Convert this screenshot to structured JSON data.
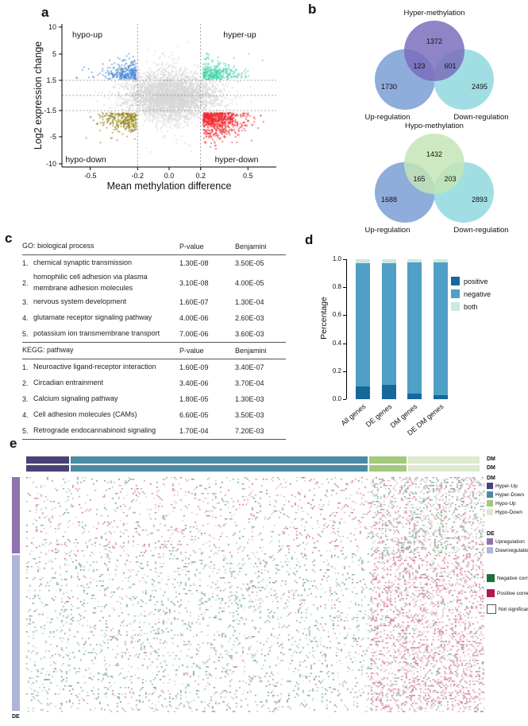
{
  "figure": {
    "labels": {
      "a": "a",
      "b": "b",
      "c": "c",
      "d": "d",
      "e": "e"
    }
  },
  "chart_data": [
    {
      "id": "a",
      "type": "scatter",
      "xlabel": "Mean methylation difference",
      "ylabel": "Log2 expression change",
      "x_ticks": [
        "-0.5",
        "-0.2",
        "0.0",
        "0.2",
        "0.5"
      ],
      "y_ticks": [
        "10",
        "5",
        "1.5",
        "-1.5",
        "-5",
        "-10"
      ],
      "x_thresholds": [
        -0.2,
        0.2
      ],
      "y_thresholds": [
        1.5,
        -1.5
      ],
      "xlim": [
        -0.68,
        0.68
      ],
      "quadrants": {
        "top_left": "hypo-up",
        "top_right": "hyper-up",
        "bottom_left": "hypo-down",
        "bottom_right": "hyper-down"
      },
      "clusters": [
        {
          "name": "not-significant",
          "color": "#d6d6d6",
          "count": 3000
        },
        {
          "name": "center-band",
          "color": "#d6d6d6",
          "count": 500
        },
        {
          "name": "hypo-up",
          "color": "#3d7fd4",
          "count": 260
        },
        {
          "name": "hyper-up",
          "color": "#38d1a4",
          "count": 300
        },
        {
          "name": "hypo-down",
          "color": "#8f7d0a",
          "count": 270
        },
        {
          "name": "hyper-down",
          "color": "#f0282f",
          "count": 700
        }
      ]
    },
    {
      "id": "b-top",
      "type": "venn",
      "title": "Hyper-methylation",
      "circles": [
        {
          "label": "Up-regulation",
          "value": "1730",
          "color": "#7b9fd4"
        },
        {
          "label": "Hyper-methylation",
          "value": "1372",
          "color": "#7a6ebc"
        },
        {
          "label": "Down-regulation",
          "value": "2495",
          "color": "#8fd8de"
        }
      ],
      "overlaps": [
        {
          "sets": "Up-regulation ∩ Hyper-methylation",
          "value": "123"
        },
        {
          "sets": "Hyper-methylation ∩ Down-regulation",
          "value": "601"
        }
      ]
    },
    {
      "id": "b-bottom",
      "type": "venn",
      "title": "Hypo-methylation",
      "circles": [
        {
          "label": "Up-regulation",
          "value": "1688",
          "color": "#7b9fd4"
        },
        {
          "label": "Hypo-methylation",
          "value": "1432",
          "color": "#c4e5b6"
        },
        {
          "label": "Down-regulation",
          "value": "2893",
          "color": "#8fd8de"
        }
      ],
      "overlaps": [
        {
          "sets": "Up-regulation ∩ Hypo-methylation",
          "value": "165"
        },
        {
          "sets": "Hypo-methylation ∩ Down-regulation",
          "value": "203"
        }
      ]
    },
    {
      "id": "c",
      "type": "table",
      "sections": [
        {
          "header": {
            "name": "GO: biological process",
            "p": "P-value",
            "benjamini": "Benjamini"
          },
          "rows": [
            {
              "num": "1.",
              "name": "chemical synaptic transmission",
              "p": "1.30E-08",
              "benjamini": "3.50E-05"
            },
            {
              "num": "2.",
              "name": "homophilic cell adhesion via plasma membrane adhesion molecules",
              "p": "3.10E-08",
              "benjamini": "4.00E-05"
            },
            {
              "num": "3.",
              "name": "nervous system development",
              "p": "1.60E-07",
              "benjamini": "1.30E-04"
            },
            {
              "num": "4.",
              "name": "glutamate receptor signaling pathway",
              "p": "4.00E-06",
              "benjamini": "2.60E-03"
            },
            {
              "num": "5.",
              "name": "potassium ion transmembrane transport",
              "p": "7.00E-06",
              "benjamini": "3.60E-03"
            }
          ]
        },
        {
          "header": {
            "name": "KEGG: pathway",
            "p": "P-value",
            "benjamini": "Benjamini"
          },
          "rows": [
            {
              "num": "1.",
              "name": "Neuroactive ligand-receptor interaction",
              "p": "1.60E-09",
              "benjamini": "3.40E-07"
            },
            {
              "num": "2.",
              "name": "Circadian entrainment",
              "p": "3.40E-06",
              "benjamini": "3.70E-04"
            },
            {
              "num": "3.",
              "name": "Calcium signaling pathway",
              "p": "1.80E-05",
              "benjamini": "1.30E-03"
            },
            {
              "num": "4.",
              "name": "Cell adhesion molecules (CAMs)",
              "p": "6.60E-05",
              "benjamini": "3.50E-03"
            },
            {
              "num": "5.",
              "name": "Retrograde endocannabinoid signaling",
              "p": "1.70E-04",
              "benjamini": "7.20E-03"
            }
          ]
        }
      ]
    },
    {
      "id": "d",
      "type": "bar",
      "stacked": true,
      "ylabel": "Percentage",
      "ylim": [
        0,
        1
      ],
      "y_ticks": [
        "1.0",
        "0.8",
        "0.6",
        "0.4",
        "0.2",
        "0.0"
      ],
      "categories": [
        "All genes",
        "DE genes",
        "DM genes",
        "DE DM genes"
      ],
      "series": [
        {
          "name": "positive",
          "color": "#16689b",
          "values": [
            0.09,
            0.1,
            0.04,
            0.03
          ]
        },
        {
          "name": "negative",
          "color": "#4f9fc6",
          "values": [
            0.88,
            0.87,
            0.94,
            0.95
          ]
        },
        {
          "name": "both",
          "color": "#cde8e0",
          "values": [
            0.03,
            0.03,
            0.02,
            0.02
          ]
        }
      ],
      "legend_position": "right"
    },
    {
      "id": "e",
      "type": "heatmap",
      "column_annotation": {
        "label": "DM",
        "rows": 2,
        "segments": [
          {
            "name": "Hyper-Up",
            "color": "#474378",
            "frac": 0.095
          },
          {
            "name": "Hyper-Down",
            "color": "#4a8ba4",
            "frac": 0.655
          },
          {
            "name": "Hypo-Up",
            "color": "#a3c97e",
            "frac": 0.082
          },
          {
            "name": "Hypo-Down",
            "color": "#dcead0",
            "frac": 0.158
          }
        ]
      },
      "row_annotation": {
        "label": "DE",
        "segments": [
          {
            "name": "Upregulation",
            "color": "#8f74b0",
            "frac": 0.33
          },
          {
            "name": "Downregulation",
            "color": "#aeb5d8",
            "frac": 0.67
          }
        ]
      },
      "cells": {
        "negative_color": "#1e6e38",
        "positive_color": "#b01950",
        "regions": [
          {
            "name": "hyper-cols-up-rows",
            "density": 0.1,
            "positive_share": 0.58
          },
          {
            "name": "hyper-cols-down-rows",
            "density": 0.11,
            "positive_share": 0.15
          },
          {
            "name": "hypo-cols-up-rows",
            "density": 0.3,
            "positive_share": 0.45
          },
          {
            "name": "hypo-cols-down-rows",
            "density": 0.28,
            "positive_share": 0.82
          }
        ]
      },
      "legends": {
        "dm": {
          "title": "DM",
          "items": [
            {
              "label": "Hyper-Up",
              "color": "#474378"
            },
            {
              "label": "Hyper-Down",
              "color": "#4a8ba4"
            },
            {
              "label": "Hypo-Up",
              "color": "#a3c97e"
            },
            {
              "label": "Hypo-Down",
              "color": "#dcead0"
            }
          ]
        },
        "de": {
          "title": "DE",
          "items": [
            {
              "label": "Upregulation",
              "color": "#8f74b0"
            },
            {
              "label": "Downregulation",
              "color": "#aeb5d8"
            }
          ]
        },
        "correlation": {
          "items": [
            {
              "label": "Negative correlation",
              "color": "#1e6e38"
            },
            {
              "label": "Positive correlation",
              "color": "#b01950"
            },
            {
              "label": "Not significant",
              "color": "#ffffff"
            }
          ]
        }
      }
    }
  ]
}
